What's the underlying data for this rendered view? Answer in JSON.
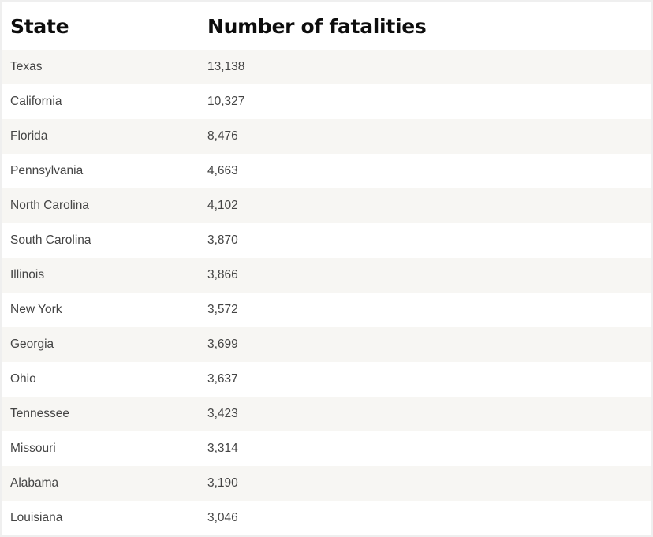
{
  "table": {
    "headers": {
      "state": "State",
      "fatalities": "Number of fatalities"
    },
    "rows": [
      {
        "state": "Texas",
        "fatalities": "13,138"
      },
      {
        "state": "California",
        "fatalities": "10,327"
      },
      {
        "state": "Florida",
        "fatalities": "8,476"
      },
      {
        "state": "Pennsylvania",
        "fatalities": "4,663"
      },
      {
        "state": "North Carolina",
        "fatalities": "4,102"
      },
      {
        "state": "South Carolina",
        "fatalities": "3,870"
      },
      {
        "state": "Illinois",
        "fatalities": "3,866"
      },
      {
        "state": "New York",
        "fatalities": "3,572"
      },
      {
        "state": "Georgia",
        "fatalities": "3,699"
      },
      {
        "state": "Ohio",
        "fatalities": "3,637"
      },
      {
        "state": "Tennessee",
        "fatalities": "3,423"
      },
      {
        "state": "Missouri",
        "fatalities": "3,314"
      },
      {
        "state": "Alabama",
        "fatalities": "3,190"
      },
      {
        "state": "Louisiana",
        "fatalities": "3,046"
      }
    ]
  },
  "colors": {
    "row_alt": "#f7f6f3",
    "row_plain": "#ffffff",
    "header_text": "#0d0d0d",
    "cell_text": "#444444"
  }
}
